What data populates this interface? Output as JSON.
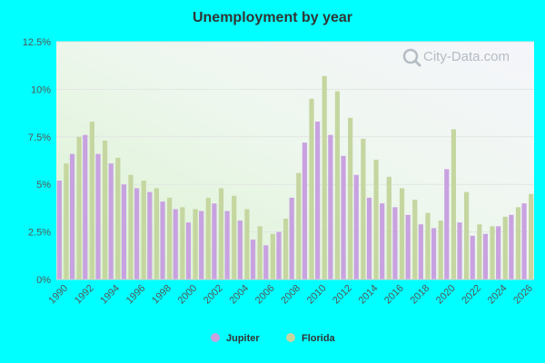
{
  "chart_data": {
    "type": "bar",
    "title": "Unemployment by year",
    "watermark": "City-Data.com",
    "xlabel": "",
    "ylabel": "",
    "ylim": [
      0,
      12.5
    ],
    "y_ticks": [
      "0%",
      "2.5%",
      "5%",
      "7.5%",
      "10%",
      "12.5%"
    ],
    "y_tick_values": [
      0,
      2.5,
      5,
      7.5,
      10,
      12.5
    ],
    "categories": [
      "1990",
      "1991",
      "1992",
      "1993",
      "1994",
      "1995",
      "1996",
      "1997",
      "1998",
      "1999",
      "2000",
      "2001",
      "2002",
      "2003",
      "2004",
      "2005",
      "2006",
      "2007",
      "2008",
      "2009",
      "2010",
      "2011",
      "2012",
      "2013",
      "2014",
      "2015",
      "2016",
      "2017",
      "2018",
      "2019",
      "2020",
      "2021",
      "2022",
      "2023",
      "2024",
      "2025",
      "2026"
    ],
    "x_tick_labels": [
      "1990",
      "1992",
      "1994",
      "1996",
      "1998",
      "2000",
      "2002",
      "2004",
      "2006",
      "2008",
      "2010",
      "2012",
      "2014",
      "2016",
      "2018",
      "2020",
      "2022",
      "2024",
      "2026"
    ],
    "series": [
      {
        "name": "Jupiter",
        "color": "#c8a2e0",
        "values": [
          5.2,
          6.6,
          7.6,
          6.6,
          6.1,
          5.0,
          4.8,
          4.6,
          4.1,
          3.7,
          3.0,
          3.6,
          4.0,
          3.6,
          3.1,
          2.1,
          1.8,
          2.5,
          4.3,
          7.2,
          8.3,
          7.6,
          6.5,
          5.5,
          4.3,
          4.0,
          3.8,
          3.4,
          2.9,
          2.7,
          5.8,
          3.0,
          2.3,
          2.4,
          2.8,
          3.4,
          4.0
        ]
      },
      {
        "name": "Florida",
        "color": "#c5d6a0",
        "values": [
          6.1,
          7.5,
          8.3,
          7.3,
          6.4,
          5.5,
          5.2,
          4.8,
          4.3,
          3.8,
          3.7,
          4.3,
          4.8,
          4.4,
          3.7,
          2.8,
          2.4,
          3.2,
          5.6,
          9.5,
          10.7,
          9.9,
          8.5,
          7.4,
          6.3,
          5.4,
          4.8,
          4.2,
          3.5,
          3.1,
          7.9,
          4.6,
          2.9,
          2.8,
          3.3,
          3.8,
          4.5
        ]
      }
    ],
    "grid": true,
    "legend_position": "bottom-center"
  }
}
